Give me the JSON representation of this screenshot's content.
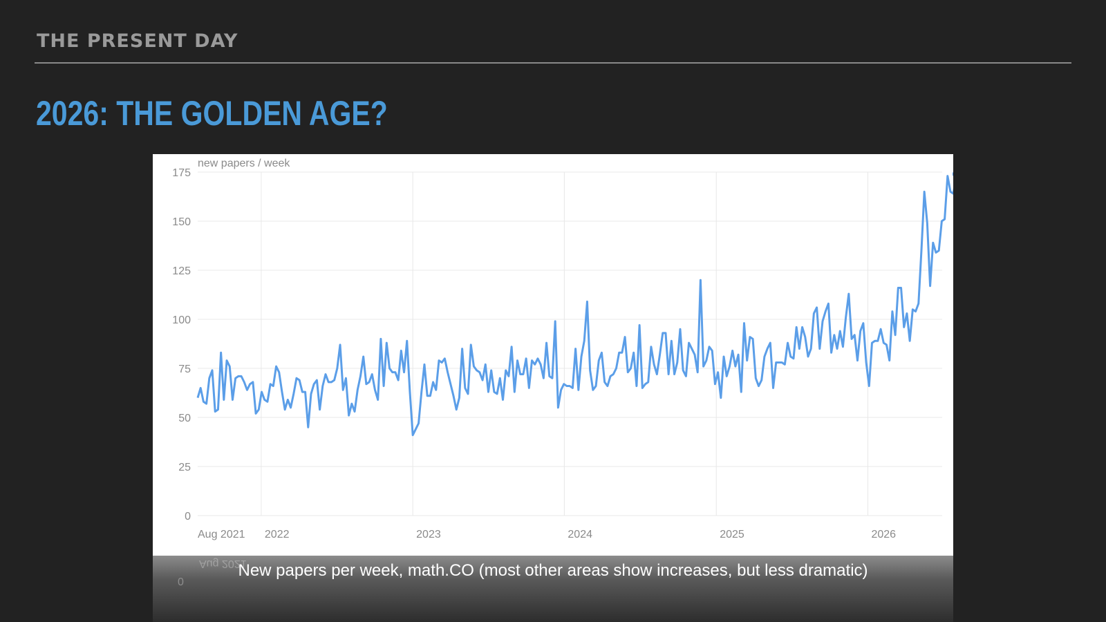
{
  "slide": {
    "section": "THE PRESENT DAY",
    "headline": "2026: THE GOLDEN AGE?",
    "caption": "New papers per week, math.CO (most other areas show increases, but less dramatic)"
  },
  "colors": {
    "background": "#222222",
    "headline": "#4a9ad8",
    "series": "#5b9ee8",
    "grid": "#e6e6e6",
    "tick_text": "#8a8a8a"
  },
  "chart_data": {
    "type": "line",
    "ylabel": "new papers / week",
    "ylim": [
      0,
      175
    ],
    "yticks": [
      0,
      25,
      50,
      75,
      100,
      125,
      150,
      175
    ],
    "xlim": [
      "2021-08-01",
      "2026-06-29"
    ],
    "xticks": [
      {
        "label": "Aug 2021",
        "date": "2021-08-01",
        "grid": false
      },
      {
        "label": "2022",
        "date": "2022-01-01",
        "grid": true
      },
      {
        "label": "2023",
        "date": "2023-01-01",
        "grid": true
      },
      {
        "label": "2024",
        "date": "2024-01-01",
        "grid": true
      },
      {
        "label": "2025",
        "date": "2025-01-01",
        "grid": true
      },
      {
        "label": "2026",
        "date": "2026-01-01",
        "grid": true
      }
    ],
    "grid": true,
    "series": [
      {
        "weekly_start": "2021-08-01",
        "values": [
          60,
          65,
          58,
          57,
          70,
          74,
          53,
          54,
          83,
          59,
          79,
          76,
          59,
          70,
          71,
          71,
          68,
          64,
          67,
          68,
          52,
          54,
          63,
          59,
          58,
          67,
          66,
          76,
          73,
          63,
          54,
          59,
          55,
          62,
          70,
          69,
          63,
          63,
          45,
          62,
          67,
          69,
          54,
          66,
          72,
          68,
          68,
          69,
          75,
          87,
          64,
          70,
          51,
          57,
          53,
          64,
          71,
          81,
          67,
          68,
          72,
          64,
          59,
          90,
          66,
          88,
          75,
          73,
          73,
          69,
          84,
          73,
          89,
          63,
          41,
          44,
          47,
          63,
          77,
          61,
          61,
          68,
          64,
          79,
          78,
          80,
          73,
          67,
          61,
          54,
          60,
          85,
          65,
          62,
          87,
          76,
          74,
          73,
          69,
          77,
          63,
          74,
          63,
          62,
          70,
          59,
          74,
          71,
          86,
          63,
          79,
          72,
          72,
          80,
          65,
          79,
          77,
          80,
          77,
          70,
          88,
          71,
          70,
          99,
          55,
          64,
          67,
          66,
          66,
          65,
          85,
          64,
          81,
          89,
          109,
          74,
          64,
          66,
          79,
          83,
          68,
          66,
          71,
          72,
          75,
          83,
          83,
          91,
          73,
          75,
          83,
          66,
          97,
          65,
          67,
          68,
          86,
          77,
          72,
          82,
          93,
          93,
          72,
          89,
          72,
          78,
          95,
          74,
          71,
          88,
          85,
          82,
          73,
          120,
          76,
          79,
          86,
          84,
          67,
          73,
          60,
          81,
          71,
          76,
          84,
          76,
          82,
          63,
          98,
          79,
          91,
          90,
          70,
          66,
          69,
          81,
          85,
          88,
          65,
          78,
          78,
          78,
          77,
          88,
          81,
          80,
          96,
          85,
          96,
          91,
          81,
          85,
          103,
          106,
          85,
          99,
          104,
          108,
          83,
          92,
          85,
          94,
          86,
          101,
          113,
          90,
          92,
          79,
          94,
          98,
          78,
          66,
          88,
          89,
          89,
          95,
          88,
          87,
          79,
          104,
          92,
          116,
          116,
          96,
          103,
          89,
          105,
          104,
          108,
          135,
          165,
          149,
          117,
          139,
          134,
          135,
          150,
          151,
          173,
          165,
          164,
          174
        ]
      }
    ],
    "last_point_marker": true
  }
}
